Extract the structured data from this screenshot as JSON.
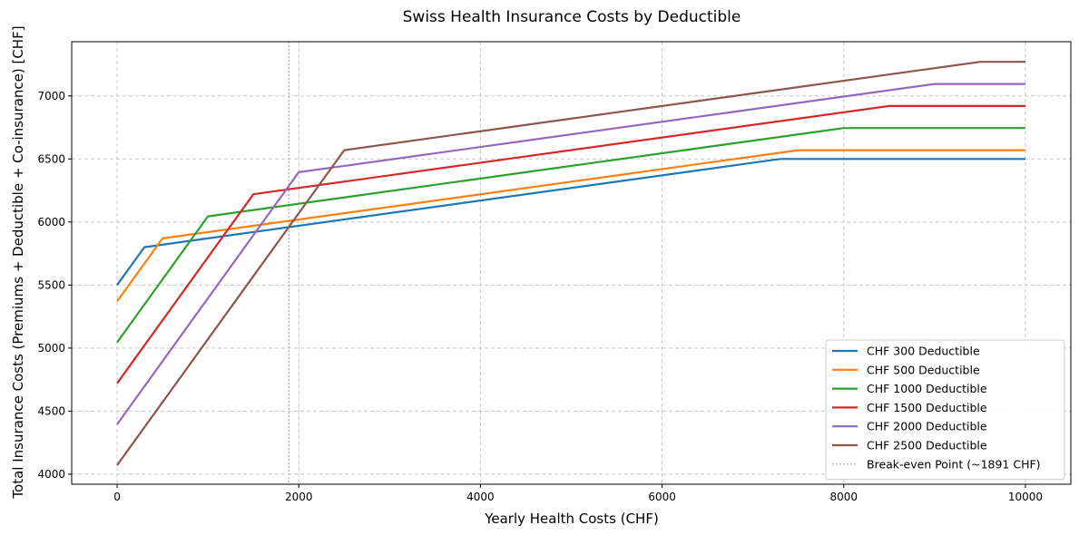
{
  "chart_data": {
    "type": "line",
    "title": "Swiss Health Insurance Costs by Deductible",
    "xlabel": "Yearly Health Costs (CHF)",
    "ylabel": "Total Insurance Costs (Premiums + Deductible + Co-insurance) [CHF]",
    "xlim": [
      -500,
      10500
    ],
    "ylim": [
      3920,
      7430
    ],
    "xticks": [
      0,
      2000,
      4000,
      6000,
      8000,
      10000
    ],
    "xtick_labels": [
      "0",
      "2000",
      "4000",
      "6000",
      "8000",
      "10000"
    ],
    "yticks": [
      4000,
      4500,
      5000,
      5500,
      6000,
      6500,
      7000
    ],
    "ytick_labels": [
      "4000",
      "4500",
      "5000",
      "5500",
      "6000",
      "6500",
      "7000"
    ],
    "grid": true,
    "legend_position": "lower-right",
    "series": [
      {
        "name": "CHF 300 Deductible",
        "color": "#1f77b4",
        "points": [
          [
            0,
            5500
          ],
          [
            300,
            5800
          ],
          [
            7300,
            6500
          ],
          [
            10000,
            6500
          ]
        ]
      },
      {
        "name": "CHF 500 Deductible",
        "color": "#ff7f0e",
        "points": [
          [
            0,
            5370
          ],
          [
            500,
            5870
          ],
          [
            7500,
            6570
          ],
          [
            10000,
            6570
          ]
        ]
      },
      {
        "name": "CHF 1000 Deductible",
        "color": "#2ca02c",
        "points": [
          [
            0,
            5045
          ],
          [
            1000,
            6045
          ],
          [
            8000,
            6745
          ],
          [
            10000,
            6745
          ]
        ]
      },
      {
        "name": "CHF 1500 Deductible",
        "color": "#d62728",
        "points": [
          [
            0,
            4720
          ],
          [
            1500,
            6220
          ],
          [
            8500,
            6920
          ],
          [
            10000,
            6920
          ]
        ]
      },
      {
        "name": "CHF 2000 Deductible",
        "color": "#9467bd",
        "points": [
          [
            0,
            4395
          ],
          [
            2000,
            6395
          ],
          [
            9000,
            7095
          ],
          [
            10000,
            7095
          ]
        ]
      },
      {
        "name": "CHF 2500 Deductible",
        "color": "#8c564b",
        "points": [
          [
            0,
            4070
          ],
          [
            2500,
            6570
          ],
          [
            9500,
            7270
          ],
          [
            10000,
            7270
          ]
        ]
      }
    ],
    "vline": {
      "name": "Break-even Point (~1891 CHF)",
      "x": 1891,
      "color": "#bbbbbb"
    }
  }
}
